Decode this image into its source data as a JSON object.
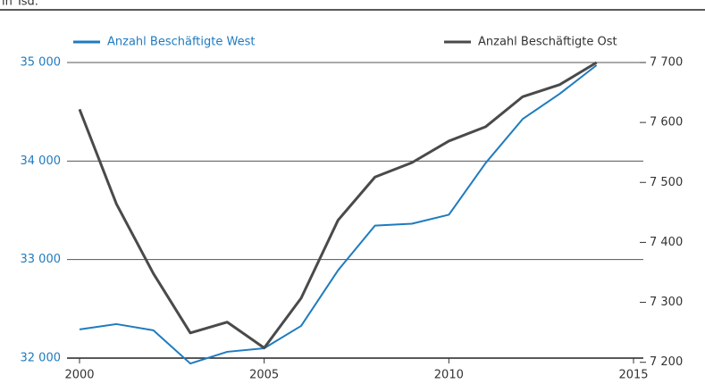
{
  "chart_data": {
    "type": "line",
    "subtitle": "in Tsd.",
    "x": [
      2000,
      2001,
      2002,
      2003,
      2004,
      2005,
      2006,
      2007,
      2008,
      2009,
      2010,
      2011,
      2012,
      2013,
      2014
    ],
    "xlim": [
      2000,
      2015
    ],
    "xticks": [
      2000,
      2005,
      2010,
      2015
    ],
    "ylim": [
      32000,
      35000
    ],
    "yticks": [
      {
        "value": 32000,
        "label": "32 000"
      },
      {
        "value": 33000,
        "label": "33 000"
      },
      {
        "value": 34000,
        "label": "34 000"
      },
      {
        "value": 35000,
        "label": "35 000"
      }
    ],
    "y2lim": [
      7207,
      7700
    ],
    "y2ticks": [
      {
        "value": 7200,
        "label": "7 200"
      },
      {
        "value": 7300,
        "label": "7 300"
      },
      {
        "value": 7400,
        "label": "7 400"
      },
      {
        "value": 7500,
        "label": "7 500"
      },
      {
        "value": 7600,
        "label": "7 600"
      },
      {
        "value": 7700,
        "label": "7 700"
      }
    ],
    "grid": true,
    "series": [
      {
        "name": "Anzahl Beschäftigte West",
        "color": "#1f7bbf",
        "values": [
          32291,
          32345,
          32282,
          31945,
          32064,
          32100,
          32327,
          32891,
          33345,
          33364,
          33455,
          33982,
          34427,
          34682,
          34973
        ]
      },
      {
        "name": "Anzahl Beschäftigte Ost",
        "color": "#4a4a4a",
        "axis": "y2",
        "values": [
          7622,
          7464,
          7348,
          7249,
          7267,
          7224,
          7307,
          7437,
          7509,
          7533,
          7569,
          7593,
          7643,
          7663,
          7700
        ]
      }
    ]
  }
}
